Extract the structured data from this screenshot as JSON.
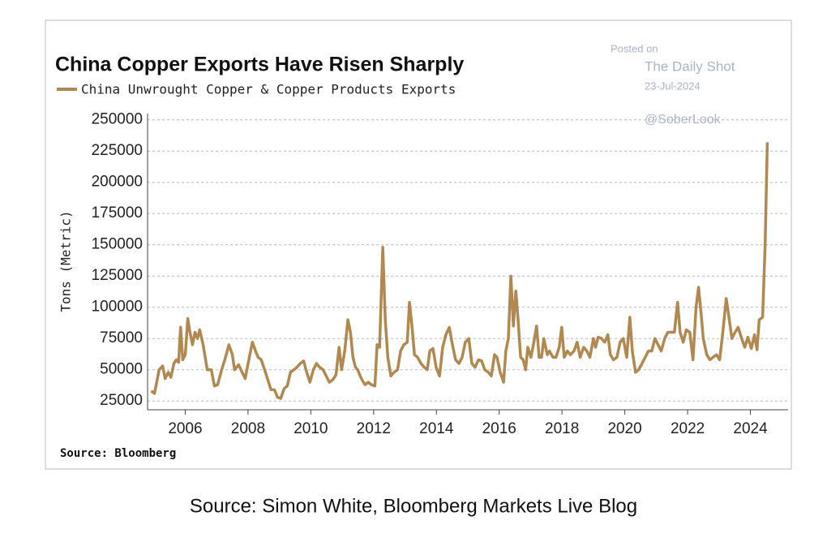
{
  "chart_data": {
    "type": "line",
    "title": "China Copper Exports Have Risen Sharply",
    "y_label": "Tons (Metric)",
    "source": "Source: Bloomberg",
    "annotations": [
      "Posted on",
      "The Daily Shot",
      "23-Jul-2024",
      "@SoberLook"
    ],
    "x": [
      2004.92,
      2005.02,
      2005.17,
      2005.28,
      2005.36,
      2005.46,
      2005.54,
      2005.64,
      2005.72,
      2005.79,
      2005.85,
      2005.92,
      2006.0,
      2006.08,
      2006.15,
      2006.23,
      2006.31,
      2006.39,
      2006.46,
      2006.57,
      2006.7,
      2006.83,
      2006.93,
      2007.03,
      2007.16,
      2007.26,
      2007.39,
      2007.5,
      2007.57,
      2007.7,
      2007.81,
      2007.91,
      2008.04,
      2008.14,
      2008.24,
      2008.32,
      2008.42,
      2008.53,
      2008.63,
      2008.73,
      2008.84,
      2008.94,
      2009.04,
      2009.15,
      2009.25,
      2009.35,
      2009.46,
      2009.56,
      2009.66,
      2009.77,
      2009.87,
      2009.97,
      2010.08,
      2010.18,
      2010.28,
      2010.39,
      2010.49,
      2010.59,
      2010.7,
      2010.8,
      2010.9,
      2010.98,
      2011.08,
      2011.18,
      2011.26,
      2011.34,
      2011.42,
      2011.49,
      2011.57,
      2011.65,
      2011.73,
      2011.83,
      2011.93,
      2012.04,
      2012.11,
      2012.19,
      2012.29,
      2012.37,
      2012.45,
      2012.55,
      2012.65,
      2012.76,
      2012.86,
      2012.96,
      2013.07,
      2013.14,
      2013.22,
      2013.3,
      2013.4,
      2013.51,
      2013.61,
      2013.71,
      2013.79,
      2013.89,
      2013.99,
      2014.1,
      2014.2,
      2014.3,
      2014.41,
      2014.51,
      2014.61,
      2014.72,
      2014.82,
      2014.92,
      2015.03,
      2015.13,
      2015.23,
      2015.34,
      2015.44,
      2015.54,
      2015.65,
      2015.75,
      2015.85,
      2015.93,
      2016.03,
      2016.14,
      2016.21,
      2016.29,
      2016.37,
      2016.45,
      2016.53,
      2016.6,
      2016.68,
      2016.76,
      2016.84,
      2016.91,
      2017.01,
      2017.09,
      2017.19,
      2017.27,
      2017.35,
      2017.42,
      2017.53,
      2017.6,
      2017.71,
      2017.81,
      2017.91,
      2017.99,
      2018.07,
      2018.17,
      2018.27,
      2018.38,
      2018.48,
      2018.58,
      2018.69,
      2018.79,
      2018.89,
      2019.0,
      2019.07,
      2019.15,
      2019.26,
      2019.36,
      2019.46,
      2019.54,
      2019.64,
      2019.75,
      2019.85,
      2019.95,
      2020.06,
      2020.16,
      2020.24,
      2020.34,
      2020.44,
      2020.55,
      2020.65,
      2020.75,
      2020.86,
      2020.96,
      2021.06,
      2021.16,
      2021.27,
      2021.37,
      2021.47,
      2021.58,
      2021.68,
      2021.76,
      2021.86,
      2021.96,
      2022.07,
      2022.17,
      2022.27,
      2022.35,
      2022.43,
      2022.5,
      2022.61,
      2022.71,
      2022.81,
      2022.92,
      2023.02,
      2023.12,
      2023.23,
      2023.3,
      2023.41,
      2023.51,
      2023.61,
      2023.72,
      2023.82,
      2023.92,
      2024.03,
      2024.13,
      2024.21,
      2024.28,
      2024.39,
      2024.47,
      2024.54
    ],
    "series": [
      {
        "name": "China Unwrought Copper & Copper Products Exports",
        "color": "#b08850",
        "values": [
          33000,
          31000,
          50000,
          53000,
          43000,
          48000,
          44000,
          55000,
          58000,
          56000,
          84000,
          58000,
          62000,
          91000,
          80000,
          70000,
          80000,
          75000,
          82000,
          70000,
          50000,
          50000,
          37000,
          38000,
          50000,
          58000,
          70000,
          62000,
          50000,
          54000,
          48000,
          43000,
          60000,
          72000,
          65000,
          60000,
          58000,
          50000,
          42000,
          34000,
          34000,
          28000,
          27000,
          35000,
          37000,
          48000,
          50000,
          52000,
          55000,
          57000,
          48000,
          40000,
          50000,
          55000,
          52000,
          50000,
          45000,
          40000,
          42000,
          46000,
          68000,
          50000,
          65000,
          90000,
          80000,
          60000,
          52000,
          50000,
          45000,
          41000,
          38000,
          40000,
          38000,
          37000,
          70000,
          68000,
          148000,
          90000,
          60000,
          45000,
          48000,
          50000,
          65000,
          70000,
          72000,
          104000,
          85000,
          62000,
          60000,
          55000,
          52000,
          50000,
          65000,
          67000,
          52000,
          45000,
          68000,
          78000,
          84000,
          70000,
          58000,
          55000,
          60000,
          72000,
          75000,
          55000,
          52000,
          58000,
          57000,
          50000,
          48000,
          45000,
          62000,
          60000,
          48000,
          40000,
          65000,
          75000,
          125000,
          85000,
          113000,
          90000,
          60000,
          58000,
          50000,
          68000,
          60000,
          70000,
          85000,
          60000,
          60000,
          75000,
          62000,
          65000,
          60000,
          60000,
          68000,
          84000,
          60000,
          65000,
          62000,
          65000,
          72000,
          60000,
          68000,
          65000,
          60000,
          75000,
          68000,
          76000,
          75000,
          72000,
          78000,
          62000,
          58000,
          60000,
          72000,
          75000,
          60000,
          92000,
          65000,
          48000,
          50000,
          55000,
          60000,
          65000,
          65000,
          75000,
          70000,
          65000,
          75000,
          80000,
          80000,
          80000,
          104000,
          80000,
          72000,
          82000,
          80000,
          58000,
          100000,
          116000,
          95000,
          75000,
          62000,
          58000,
          60000,
          62000,
          58000,
          80000,
          107000,
          95000,
          75000,
          80000,
          84000,
          75000,
          68000,
          76000,
          67000,
          78000,
          66000,
          90000,
          92000,
          150000,
          232000
        ]
      }
    ],
    "xlim": [
      2004.8,
      2025.2
    ],
    "xticks": [
      2006,
      2008,
      2010,
      2012,
      2014,
      2016,
      2018,
      2020,
      2022,
      2024
    ],
    "ylim": [
      18000,
      255000
    ],
    "yticks": [
      25000,
      50000,
      75000,
      100000,
      125000,
      150000,
      175000,
      200000,
      225000,
      250000
    ],
    "grid": true
  },
  "caption": "Source: Simon White, Bloomberg Markets Live Blog"
}
